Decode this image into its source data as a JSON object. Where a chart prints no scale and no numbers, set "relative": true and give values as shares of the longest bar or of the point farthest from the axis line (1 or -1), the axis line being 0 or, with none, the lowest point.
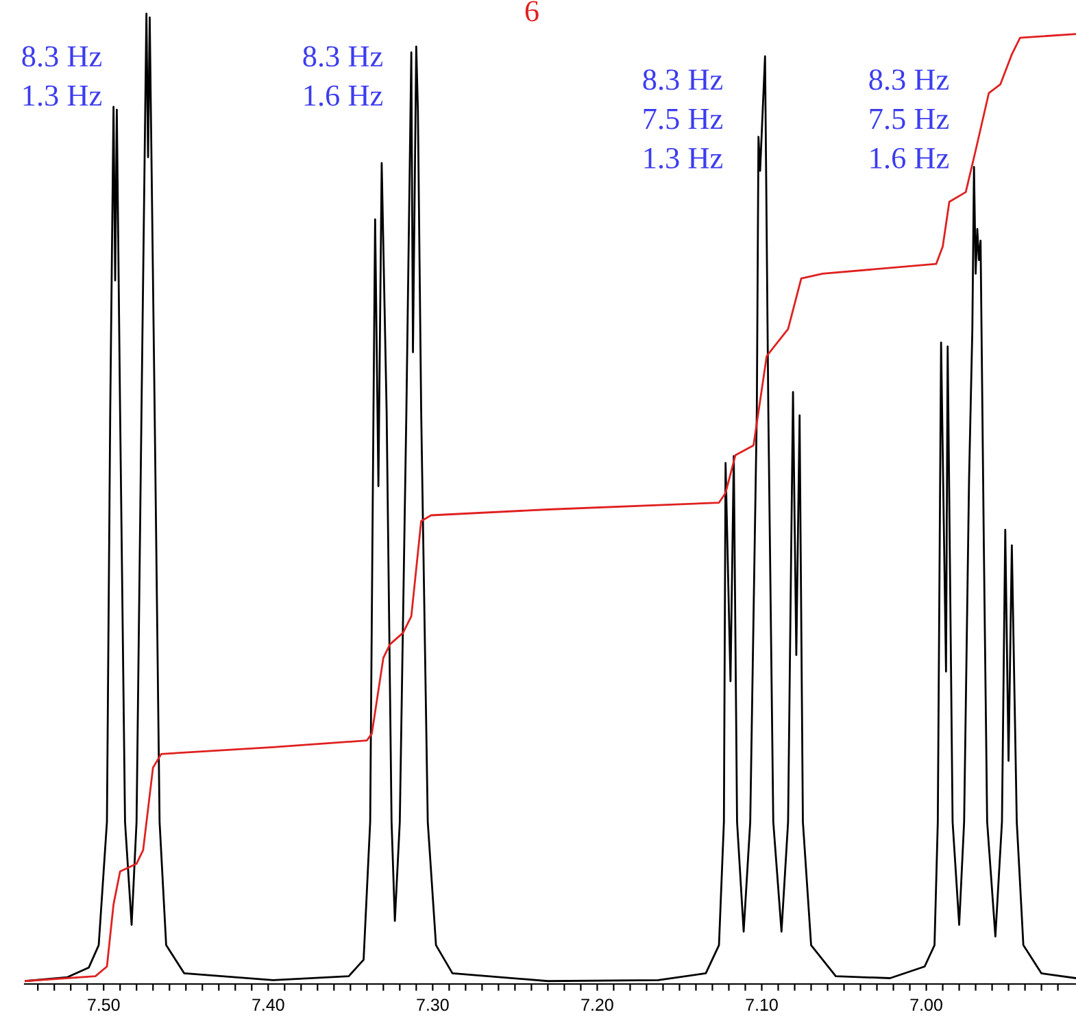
{
  "chart_data": {
    "type": "line",
    "relative": true,
    "xlim": [
      7.548,
      6.909
    ],
    "xticks": [
      {
        "value": 7.54,
        "label": null
      },
      {
        "value": 7.53,
        "label": null
      },
      {
        "value": 7.52,
        "label": null
      },
      {
        "value": 7.51,
        "label": null
      },
      {
        "value": 7.5,
        "label": "7.50"
      },
      {
        "value": 7.49,
        "label": null
      },
      {
        "value": 7.48,
        "label": null
      },
      {
        "value": 7.47,
        "label": null
      },
      {
        "value": 7.46,
        "label": null
      },
      {
        "value": 7.45,
        "label": null
      },
      {
        "value": 7.44,
        "label": null
      },
      {
        "value": 7.43,
        "label": null
      },
      {
        "value": 7.42,
        "label": null
      },
      {
        "value": 7.41,
        "label": null
      },
      {
        "value": 7.4,
        "label": "7.40"
      },
      {
        "value": 7.39,
        "label": null
      },
      {
        "value": 7.38,
        "label": null
      },
      {
        "value": 7.37,
        "label": null
      },
      {
        "value": 7.36,
        "label": null
      },
      {
        "value": 7.35,
        "label": null
      },
      {
        "value": 7.34,
        "label": null
      },
      {
        "value": 7.33,
        "label": null
      },
      {
        "value": 7.32,
        "label": null
      },
      {
        "value": 7.31,
        "label": null
      },
      {
        "value": 7.3,
        "label": "7.30"
      },
      {
        "value": 7.29,
        "label": null
      },
      {
        "value": 7.28,
        "label": null
      },
      {
        "value": 7.27,
        "label": null
      },
      {
        "value": 7.26,
        "label": null
      },
      {
        "value": 7.25,
        "label": null
      },
      {
        "value": 7.24,
        "label": null
      },
      {
        "value": 7.23,
        "label": null
      },
      {
        "value": 7.22,
        "label": null
      },
      {
        "value": 7.21,
        "label": null
      },
      {
        "value": 7.2,
        "label": "7.20"
      },
      {
        "value": 7.19,
        "label": null
      },
      {
        "value": 7.18,
        "label": null
      },
      {
        "value": 7.17,
        "label": null
      },
      {
        "value": 7.16,
        "label": null
      },
      {
        "value": 7.15,
        "label": null
      },
      {
        "value": 7.14,
        "label": null
      },
      {
        "value": 7.13,
        "label": null
      },
      {
        "value": 7.12,
        "label": null
      },
      {
        "value": 7.11,
        "label": null
      },
      {
        "value": 7.1,
        "label": "7.10"
      },
      {
        "value": 7.09,
        "label": null
      },
      {
        "value": 7.08,
        "label": null
      },
      {
        "value": 7.07,
        "label": null
      },
      {
        "value": 7.06,
        "label": null
      },
      {
        "value": 7.05,
        "label": null
      },
      {
        "value": 7.04,
        "label": null
      },
      {
        "value": 7.03,
        "label": null
      },
      {
        "value": 7.02,
        "label": null
      },
      {
        "value": 7.01,
        "label": null
      },
      {
        "value": 7.0,
        "label": "7.00"
      },
      {
        "value": 6.99,
        "label": null
      },
      {
        "value": 6.98,
        "label": null
      },
      {
        "value": 6.97,
        "label": null
      },
      {
        "value": 6.96,
        "label": null
      },
      {
        "value": 6.95,
        "label": null
      },
      {
        "value": 6.94,
        "label": null
      },
      {
        "value": 6.93,
        "label": null
      },
      {
        "value": 6.92,
        "label": null
      }
    ],
    "tick_labels": "x",
    "grid": false,
    "legend": false,
    "marker": "none",
    "line_style": "solid",
    "series": [
      {
        "color": "#000000",
        "x": [
          7.548,
          7.522,
          7.509,
          7.503,
          7.498,
          7.496,
          7.494,
          7.493,
          7.492,
          7.49,
          7.487,
          7.483,
          7.48,
          7.477,
          7.474,
          7.473,
          7.472,
          7.469,
          7.466,
          7.462,
          7.451,
          7.397,
          7.351,
          7.342,
          7.338,
          7.336,
          7.335,
          7.333,
          7.331,
          7.328,
          7.325,
          7.323,
          7.32,
          7.316,
          7.313,
          7.312,
          7.31,
          7.309,
          7.307,
          7.303,
          7.298,
          7.288,
          7.23,
          7.163,
          7.134,
          7.126,
          7.123,
          7.122,
          7.119,
          7.117,
          7.115,
          7.111,
          7.107,
          7.103,
          7.102,
          7.101,
          7.098,
          7.096,
          7.093,
          7.088,
          7.084,
          7.081,
          7.079,
          7.077,
          7.075,
          7.07,
          7.055,
          7.022,
          7.001,
          6.995,
          6.993,
          6.991,
          6.988,
          6.987,
          6.984,
          6.98,
          6.977,
          6.974,
          6.972,
          6.971,
          6.97,
          6.969,
          6.968,
          6.967,
          6.965,
          6.963,
          6.958,
          6.954,
          6.952,
          6.95,
          6.948,
          6.945,
          6.941,
          6.93,
          6.909
        ],
        "values": [
          0.003,
          0.007,
          0.017,
          0.04,
          0.167,
          0.59,
          0.904,
          0.725,
          0.901,
          0.59,
          0.167,
          0.061,
          0.167,
          0.59,
          1.0,
          0.852,
          0.996,
          0.59,
          0.167,
          0.04,
          0.011,
          0.004,
          0.008,
          0.025,
          0.167,
          0.59,
          0.788,
          0.513,
          0.846,
          0.59,
          0.167,
          0.065,
          0.167,
          0.59,
          0.96,
          0.651,
          0.966,
          0.901,
          0.59,
          0.167,
          0.04,
          0.011,
          0.003,
          0.004,
          0.011,
          0.04,
          0.167,
          0.537,
          0.312,
          0.544,
          0.167,
          0.054,
          0.167,
          0.59,
          0.873,
          0.838,
          0.956,
          0.59,
          0.167,
          0.054,
          0.167,
          0.61,
          0.339,
          0.586,
          0.167,
          0.04,
          0.008,
          0.006,
          0.018,
          0.04,
          0.167,
          0.661,
          0.322,
          0.657,
          0.167,
          0.061,
          0.167,
          0.52,
          0.675,
          0.842,
          0.732,
          0.778,
          0.746,
          0.766,
          0.449,
          0.167,
          0.049,
          0.167,
          0.468,
          0.23,
          0.452,
          0.167,
          0.04,
          0.011,
          0.006
        ]
      },
      {
        "color": "#e02020",
        "x": [
          7.548,
          7.505,
          7.498,
          7.494,
          7.49,
          7.48,
          7.476,
          7.47,
          7.465,
          7.397,
          7.34,
          7.337,
          7.33,
          7.326,
          7.318,
          7.313,
          7.307,
          7.301,
          7.23,
          7.126,
          7.122,
          7.116,
          7.105,
          7.097,
          7.091,
          7.084,
          7.076,
          7.063,
          6.994,
          6.99,
          6.986,
          6.976,
          6.97,
          6.962,
          6.955,
          6.948,
          6.943,
          6.909
        ],
        "values": [
          0.003,
          0.008,
          0.018,
          0.082,
          0.116,
          0.124,
          0.138,
          0.223,
          0.237,
          0.244,
          0.251,
          0.258,
          0.336,
          0.35,
          0.362,
          0.379,
          0.477,
          0.483,
          0.489,
          0.496,
          0.506,
          0.545,
          0.555,
          0.647,
          0.66,
          0.675,
          0.727,
          0.732,
          0.742,
          0.76,
          0.806,
          0.816,
          0.859,
          0.918,
          0.927,
          0.958,
          0.975,
          0.979
        ]
      }
    ],
    "annotations": [
      "6",
      "8.3 Hz\n1.3 Hz",
      "8.3 Hz\n1.6 Hz",
      "8.3 Hz\n7.5 Hz\n1.3 Hz",
      "8.3 Hz\n7.5 Hz\n1.6 Hz"
    ]
  }
}
